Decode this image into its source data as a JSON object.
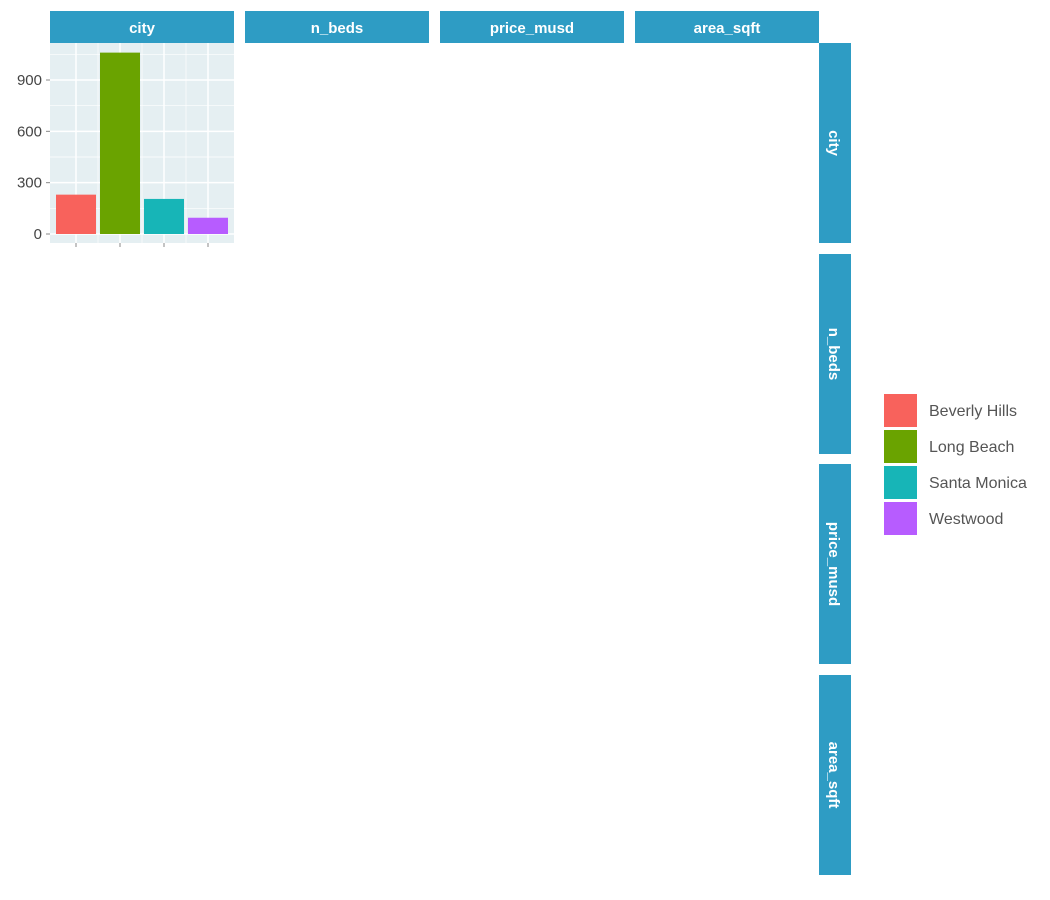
{
  "chart_data": {
    "type": "bar",
    "layout": "pairs-matrix",
    "variables": [
      "city",
      "n_beds",
      "price_musd",
      "area_sqft"
    ],
    "panel": {
      "row": "city",
      "col": "city"
    },
    "categories": [
      "Beverly Hills",
      "Long Beach",
      "Santa Monica",
      "Westwood"
    ],
    "values": [
      230,
      1060,
      205,
      95
    ],
    "ylim": [
      0,
      1100
    ],
    "yticks": [
      0,
      300,
      600,
      900
    ],
    "colors": {
      "Beverly Hills": "#F8625C",
      "Long Beach": "#6AA300",
      "Santa Monica": "#17B5B7",
      "Westwood": "#B75CFF"
    },
    "strip_color": "#2E9CC4",
    "panel_background": "#E5EFF2",
    "legend": {
      "position": "right",
      "entries": [
        "Beverly Hills",
        "Long Beach",
        "Santa Monica",
        "Westwood"
      ]
    },
    "grid": true
  }
}
